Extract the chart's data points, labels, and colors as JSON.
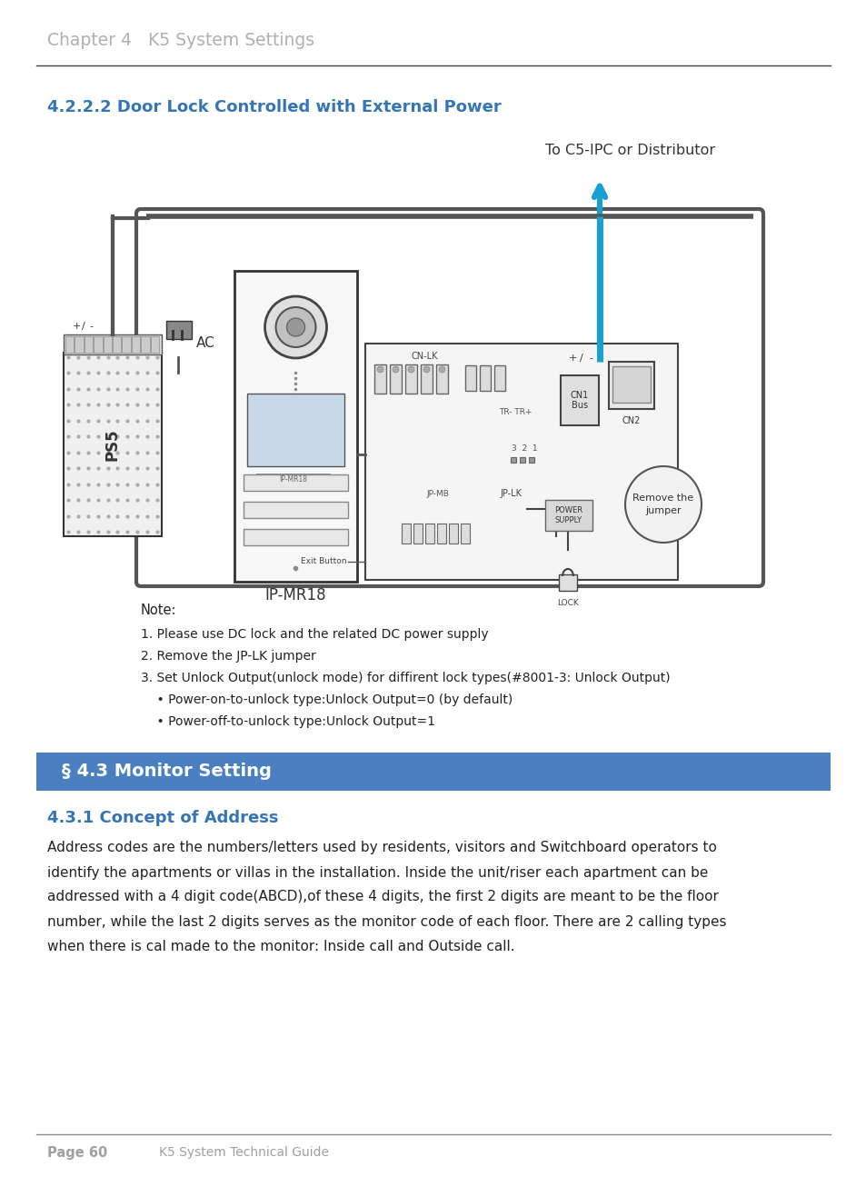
{
  "page_title": "Chapter 4   K5 System Settings",
  "section_title": "4.2.2.2 Door Lock Controlled with External Power",
  "section_bar_title": "§ 4.3 Monitor Setting",
  "subsection_title": "4.3.1 Concept of Address",
  "body_lines": [
    "Address codes are the numbers/letters used by residents, visitors and Switchboard operators to",
    "identify the apartments or villas in the installation. Inside the unit/riser each apartment can be",
    "addressed with a 4 digit code(ABCD),of these 4 digits, the first 2 digits are meant to be the floor",
    "number, while the last 2 digits serves as the monitor code of each floor. There are 2 calling types",
    "when there is cal made to the monitor: Inside call and Outside call."
  ],
  "note_title": "Note:",
  "note_lines": [
    "1. Please use DC lock and the related DC power supply",
    "2. Remove the JP-LK jumper",
    "3. Set Unlock Output(unlock mode) for diffirent lock types(#8001-3: Unlock Output)",
    "    • Power-on-to-unlock type:Unlock Output=0 (by default)",
    "    • Power-off-to-unlock type:Unlock Output=1"
  ],
  "arrow_label": "To C5-IPC or Distributor",
  "label_ipmr18": "IP-MR18",
  "label_ac": "AC",
  "label_ps5": "PS5",
  "label_cn1": "CN1\nBus",
  "label_cn2": "CN2",
  "label_jplk": "JP-LK",
  "label_remove": "Remove the\njumper",
  "label_power": "POWER\nSUPPLY",
  "label_lock": "LOCK",
  "label_exit": "Exit Button",
  "label_cnlk": "CN-LK",
  "label_trtr": "TR- TR+",
  "label_321": "3  2  1",
  "footer_page": "Page 60",
  "footer_guide": "K5 System Technical Guide",
  "color_title": "#b0b0b0",
  "color_section": "#3575b5",
  "color_bar": "#4a7fc1",
  "color_body": "#222222",
  "color_footer": "#a0a0a0",
  "color_line": "#cccccc",
  "color_blue": "#1a9fd4",
  "color_dark": "#333333",
  "color_mid": "#666666",
  "color_light": "#e8e8e8",
  "color_pcb": "#f5f5f5"
}
